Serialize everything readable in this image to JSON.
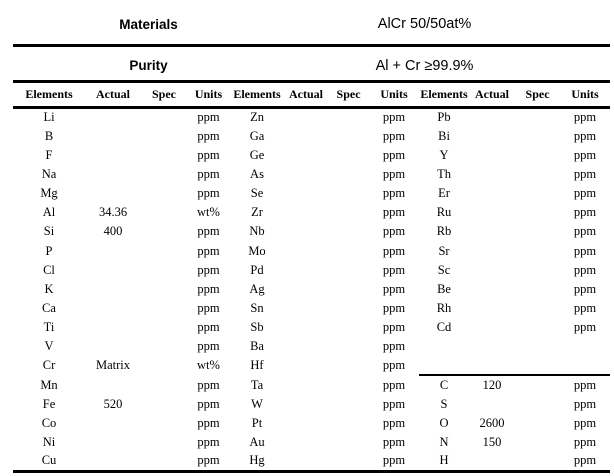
{
  "header": {
    "materials_label": "Materials",
    "materials_value": "AlCr 50/50at%",
    "purity_label": "Purity",
    "purity_value": "Al + Cr ≥99.9%"
  },
  "table": {
    "column_headers": [
      "Elements",
      "Actual",
      "Spec",
      "Units"
    ],
    "groups": 3,
    "gas_separator_above": "C",
    "rows": [
      [
        "Li",
        "",
        "",
        "ppm",
        "Zn",
        "",
        "",
        "ppm",
        "Pb",
        "",
        "",
        "ppm"
      ],
      [
        "B",
        "",
        "",
        "ppm",
        "Ga",
        "",
        "",
        "ppm",
        "Bi",
        "",
        "",
        "ppm"
      ],
      [
        "F",
        "",
        "",
        "ppm",
        "Ge",
        "",
        "",
        "ppm",
        "Y",
        "",
        "",
        "ppm"
      ],
      [
        "Na",
        "",
        "",
        "ppm",
        "As",
        "",
        "",
        "ppm",
        "Th",
        "",
        "",
        "ppm"
      ],
      [
        "Mg",
        "",
        "",
        "ppm",
        "Se",
        "",
        "",
        "ppm",
        "Er",
        "",
        "",
        "ppm"
      ],
      [
        "Al",
        "34.36",
        "",
        "wt%",
        "Zr",
        "",
        "",
        "ppm",
        "Ru",
        "",
        "",
        "ppm"
      ],
      [
        "Si",
        "400",
        "",
        "ppm",
        "Nb",
        "",
        "",
        "ppm",
        "Rb",
        "",
        "",
        "ppm"
      ],
      [
        "P",
        "",
        "",
        "ppm",
        "Mo",
        "",
        "",
        "ppm",
        "Sr",
        "",
        "",
        "ppm"
      ],
      [
        "Cl",
        "",
        "",
        "ppm",
        "Pd",
        "",
        "",
        "ppm",
        "Sc",
        "",
        "",
        "ppm"
      ],
      [
        "K",
        "",
        "",
        "ppm",
        "Ag",
        "",
        "",
        "ppm",
        "Be",
        "",
        "",
        "ppm"
      ],
      [
        "Ca",
        "",
        "",
        "ppm",
        "Sn",
        "",
        "",
        "ppm",
        "Rh",
        "",
        "",
        "ppm"
      ],
      [
        "Ti",
        "",
        "",
        "ppm",
        "Sb",
        "",
        "",
        "ppm",
        "Cd",
        "",
        "",
        "ppm"
      ],
      [
        "V",
        "",
        "",
        "ppm",
        "Ba",
        "",
        "",
        "ppm",
        "",
        "",
        "",
        ""
      ],
      [
        "Cr",
        "Matrix",
        "",
        "wt%",
        "Hf",
        "",
        "",
        "ppm",
        "",
        "",
        "",
        ""
      ],
      [
        "Mn",
        "",
        "",
        "ppm",
        "Ta",
        "",
        "",
        "ppm",
        "C",
        "120",
        "",
        "ppm"
      ],
      [
        "Fe",
        "520",
        "",
        "ppm",
        "W",
        "",
        "",
        "ppm",
        "S",
        "",
        "",
        "ppm"
      ],
      [
        "Co",
        "",
        "",
        "ppm",
        "Pt",
        "",
        "",
        "ppm",
        "O",
        "2600",
        "",
        "ppm"
      ],
      [
        "Ni",
        "",
        "",
        "ppm",
        "Au",
        "",
        "",
        "ppm",
        "N",
        "150",
        "",
        "ppm"
      ],
      [
        "Cu",
        "",
        "",
        "ppm",
        "Hg",
        "",
        "",
        "ppm",
        "H",
        "",
        "",
        "ppm"
      ]
    ]
  }
}
